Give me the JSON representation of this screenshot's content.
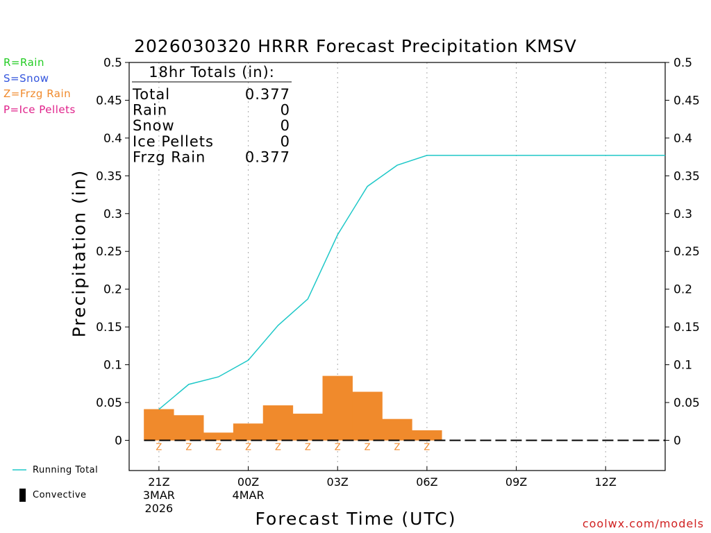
{
  "title": "2026030320 HRRR Forecast Precipitation KMSV",
  "legend_ptypes": [
    {
      "label": "R=Rain",
      "color": "#22cc22"
    },
    {
      "label": "S=Snow",
      "color": "#3355dd"
    },
    {
      "label": "Z=Frzg Rain",
      "color": "#f08a2c"
    },
    {
      "label": "P=Ice Pellets",
      "color": "#e0208a"
    }
  ],
  "legend_bottom": {
    "running_total": "Running Total",
    "convective": "Convective"
  },
  "credit": "coolwx.com/models",
  "colors": {
    "bar": "#f08a2c",
    "running_total": "#1ec8c8",
    "ptype": "#f08a2c",
    "grid": "#aaaaaa"
  },
  "totals_box": {
    "header": "18hr Totals (in):",
    "rows": [
      {
        "label": "Total",
        "value": "0.377"
      },
      {
        "label": "Rain",
        "value": "0"
      },
      {
        "label": "Snow",
        "value": "0"
      },
      {
        "label": "Ice Pellets",
        "value": "0"
      },
      {
        "label": "Frzg Rain",
        "value": "0.377"
      }
    ]
  },
  "chart_data": {
    "type": "bar",
    "title": "2026030320 HRRR Forecast Precipitation KMSV",
    "xlabel": "Forecast Time (UTC)",
    "ylabel": "Precipitation (in)",
    "ylim": [
      -0.04,
      0.5
    ],
    "yticks": [
      0,
      0.05,
      0.1,
      0.15,
      0.2,
      0.25,
      0.3,
      0.35,
      0.4,
      0.45,
      0.5
    ],
    "ytick_labels": [
      "0",
      "0.05",
      "0.1",
      "0.15",
      "0.2",
      "0.25",
      "0.3",
      "0.35",
      "0.4",
      "0.45",
      "0.5"
    ],
    "xlim_hours": [
      -1,
      17
    ],
    "xticks": [
      {
        "hour": 0,
        "lines": [
          "21Z",
          "3MAR",
          "2026"
        ]
      },
      {
        "hour": 3,
        "lines": [
          "00Z",
          "4MAR"
        ]
      },
      {
        "hour": 6,
        "lines": [
          "03Z"
        ]
      },
      {
        "hour": 9,
        "lines": [
          "06Z"
        ]
      },
      {
        "hour": 12,
        "lines": [
          "09Z"
        ]
      },
      {
        "hour": 15,
        "lines": [
          "12Z"
        ]
      }
    ],
    "bar_hours": [
      0,
      1,
      2,
      3,
      4,
      5,
      6,
      7,
      8,
      9
    ],
    "hourly_precip": [
      0.041,
      0.033,
      0.01,
      0.022,
      0.046,
      0.035,
      0.085,
      0.064,
      0.028,
      0.013
    ],
    "ptype_hours": [
      0,
      1,
      2,
      3,
      4,
      5,
      6,
      7,
      8,
      9
    ],
    "ptype_labels": [
      "Z",
      "Z",
      "Z",
      "Z",
      "Z",
      "Z",
      "Z",
      "Z",
      "Z",
      "Z"
    ],
    "running_total": {
      "hours": [
        0,
        1,
        2,
        3,
        4,
        5,
        6,
        7,
        8,
        9,
        10,
        11,
        12,
        13,
        14,
        15,
        16,
        17
      ],
      "values": [
        0.041,
        0.074,
        0.084,
        0.106,
        0.152,
        0.187,
        0.272,
        0.336,
        0.364,
        0.377,
        0.377,
        0.377,
        0.377,
        0.377,
        0.377,
        0.377,
        0.377,
        0.377
      ]
    },
    "baseline_dash_hours": [
      0,
      17
    ]
  }
}
